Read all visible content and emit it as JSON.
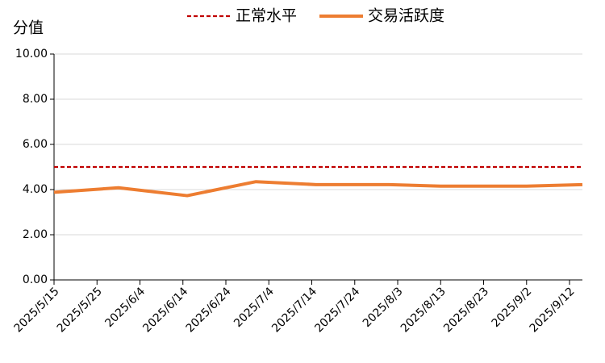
{
  "chart_data": {
    "type": "line",
    "y_label": "分值",
    "x": [
      "2025/5/15",
      "2025/5/30",
      "2025/6/15",
      "2025/7/1",
      "2025/7/15",
      "2025/8/1",
      "2025/8/13",
      "2025/9/2",
      "2025/9/15"
    ],
    "series": [
      {
        "name": "正常水平",
        "color": "#c00000",
        "dashed": true,
        "values": [
          5,
          5,
          5,
          5,
          5,
          5,
          5,
          5,
          5
        ]
      },
      {
        "name": "交易活跃度",
        "color": "#ed7d31",
        "dashed": false,
        "values": [
          3.88,
          4.08,
          3.73,
          4.35,
          4.22,
          4.22,
          4.15,
          4.15,
          4.22
        ]
      }
    ],
    "xlim": [
      "2025/5/15",
      "2025/9/15"
    ],
    "xticks": [
      "2025/5/15",
      "2025/5/25",
      "2025/6/4",
      "2025/6/14",
      "2025/6/24",
      "2025/7/4",
      "2025/7/14",
      "2025/7/24",
      "2025/8/3",
      "2025/8/13",
      "2025/8/23",
      "2025/9/2",
      "2025/9/12"
    ],
    "ylim": [
      0,
      10
    ],
    "yticks": [
      {
        "value": 0,
        "label": "0.00"
      },
      {
        "value": 2,
        "label": "2.00"
      },
      {
        "value": 4,
        "label": "4.00"
      },
      {
        "value": 6,
        "label": "6.00"
      },
      {
        "value": 8,
        "label": "8.00"
      },
      {
        "value": 10,
        "label": "10.00"
      }
    ],
    "grid": true
  }
}
